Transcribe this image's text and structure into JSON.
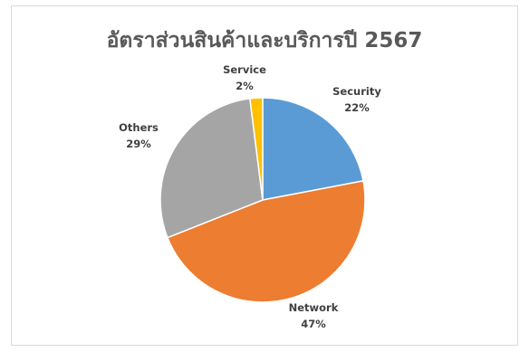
{
  "chart_data": {
    "type": "pie",
    "title": "อัตราส่วนสินค้าและบริการปี  2567",
    "slices": [
      {
        "name": "Security",
        "value": 22,
        "pct_label": "22%",
        "color": "#5b9bd5"
      },
      {
        "name": "Network",
        "value": 47,
        "pct_label": "47%",
        "color": "#ed7d31"
      },
      {
        "name": "Others",
        "value": 29,
        "pct_label": "29%",
        "color": "#a5a5a5"
      },
      {
        "name": "Service",
        "value": 2,
        "pct_label": "2%",
        "color": "#ffc000"
      }
    ],
    "start": "12 o'clock",
    "direction": "clockwise",
    "legend": "none",
    "labels": "outside-end"
  }
}
